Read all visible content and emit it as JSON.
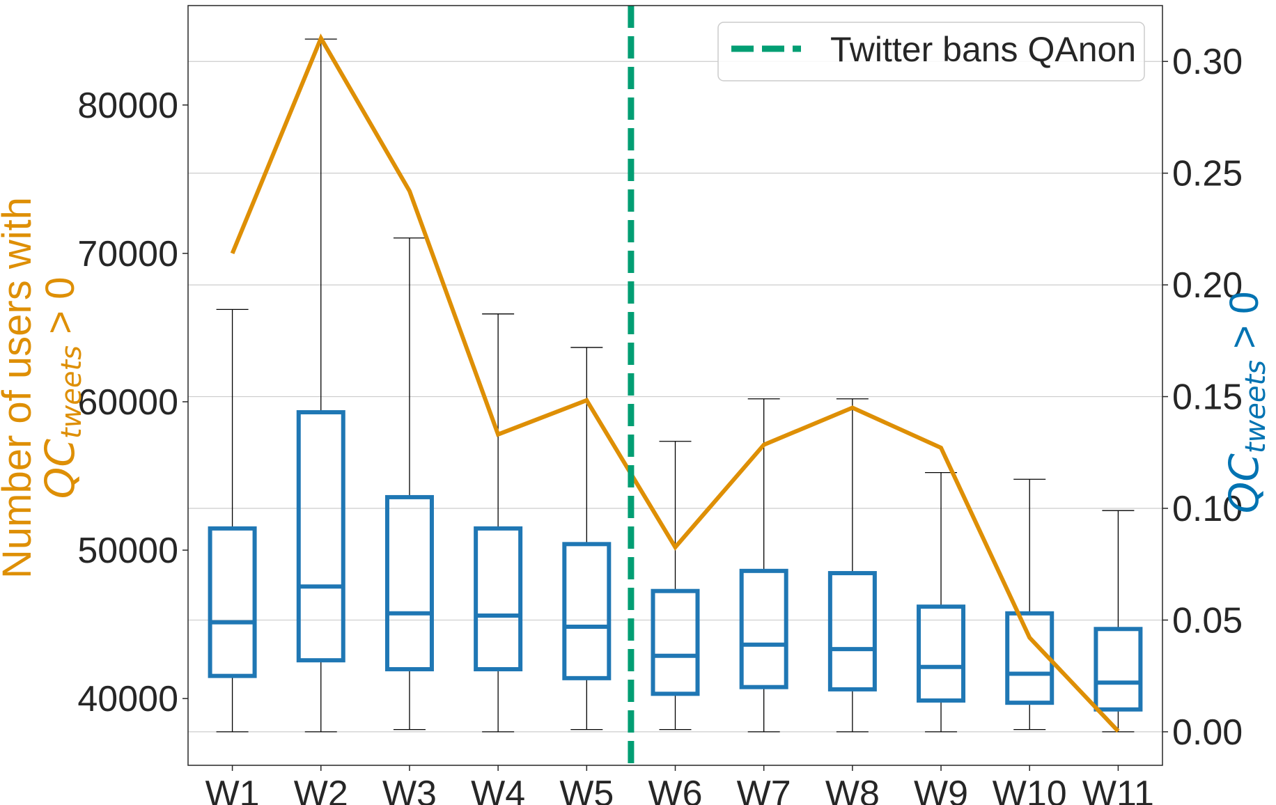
{
  "chart_data": {
    "type": "box+line",
    "categories": [
      "W1",
      "W2",
      "W3",
      "W4",
      "W5",
      "W6",
      "W7",
      "W8",
      "W9",
      "W10",
      "W11"
    ],
    "left_axis": {
      "label_line1": "Number of users with",
      "label_line2_base": "QC",
      "label_line2_sub": "tweets",
      "label_line2_rest": " > 0",
      "ylim": [
        35500,
        86700
      ],
      "ticks": [
        40000,
        50000,
        60000,
        70000,
        80000
      ],
      "color": "#de8f05"
    },
    "right_axis": {
      "label_base": "QC",
      "label_sub": "tweets",
      "label_rest": " > 0",
      "ylim": [
        -0.015,
        0.325
      ],
      "ticks": [
        0.0,
        0.05,
        0.1,
        0.15,
        0.2,
        0.25,
        0.3
      ],
      "tick_labels": [
        "0.00",
        "0.05",
        "0.10",
        "0.15",
        "0.20",
        "0.25",
        "0.30"
      ],
      "color": "#0173b2"
    },
    "line_series": {
      "name": "Number of users with QC_tweets > 0",
      "axis": "left",
      "color": "#de8f05",
      "values": [
        70000,
        84500,
        74200,
        57800,
        60100,
        50200,
        57100,
        59600,
        56900,
        44100,
        37800
      ]
    },
    "box_series": {
      "name": "QC_tweets > 0",
      "axis": "right",
      "color": "#1f77b4",
      "boxes": [
        {
          "whislo": 0.0,
          "q1": 0.025,
          "med": 0.049,
          "q3": 0.091,
          "whishi": 0.189
        },
        {
          "whislo": 0.0,
          "q1": 0.032,
          "med": 0.065,
          "q3": 0.143,
          "whishi": 0.31
        },
        {
          "whislo": 0.001,
          "q1": 0.028,
          "med": 0.053,
          "q3": 0.105,
          "whishi": 0.221
        },
        {
          "whislo": 0.0,
          "q1": 0.028,
          "med": 0.052,
          "q3": 0.091,
          "whishi": 0.187
        },
        {
          "whislo": 0.001,
          "q1": 0.024,
          "med": 0.047,
          "q3": 0.084,
          "whishi": 0.172
        },
        {
          "whislo": 0.001,
          "q1": 0.017,
          "med": 0.034,
          "q3": 0.063,
          "whishi": 0.13
        },
        {
          "whislo": 0.0,
          "q1": 0.02,
          "med": 0.039,
          "q3": 0.072,
          "whishi": 0.149
        },
        {
          "whislo": 0.0,
          "q1": 0.019,
          "med": 0.037,
          "q3": 0.071,
          "whishi": 0.149
        },
        {
          "whislo": 0.0,
          "q1": 0.014,
          "med": 0.029,
          "q3": 0.056,
          "whishi": 0.116
        },
        {
          "whislo": 0.001,
          "q1": 0.013,
          "med": 0.026,
          "q3": 0.053,
          "whishi": 0.113
        },
        {
          "whislo": 0.0,
          "q1": 0.01,
          "med": 0.022,
          "q3": 0.046,
          "whishi": 0.099
        }
      ]
    },
    "event_line": {
      "label": "Twitter bans QAnon",
      "position_between": [
        "W5",
        "W6"
      ],
      "color": "#029e73"
    },
    "legend": {
      "placement": "top-right"
    },
    "grid": {
      "horizontal": true,
      "axis": "right"
    }
  }
}
